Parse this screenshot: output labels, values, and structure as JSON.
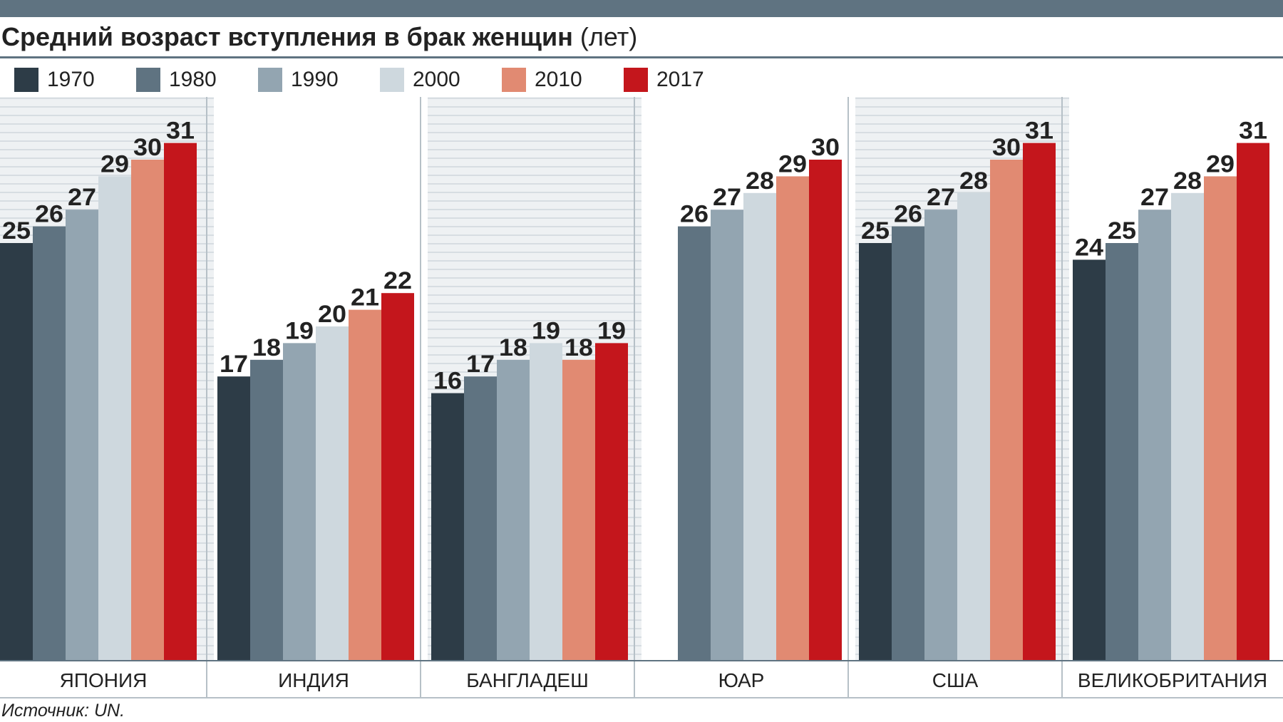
{
  "title": "Средний возраст вступления в брак женщин",
  "title_unit": "(лет)",
  "source": "Источник: UN.",
  "colors": {
    "topbar": "#5f7381",
    "stripe_panel_bg": "#eef1f3",
    "stripe_line": "#c9d1d7",
    "divider": "#b6c0c7",
    "label": "#222222"
  },
  "legend": [
    {
      "label": "1970",
      "color": "#2d3c47"
    },
    {
      "label": "1980",
      "color": "#5f7381"
    },
    {
      "label": "1990",
      "color": "#93a5b1"
    },
    {
      "label": "2000",
      "color": "#ced8de"
    },
    {
      "label": "2010",
      "color": "#e18a72"
    },
    {
      "label": "2017",
      "color": "#c4161c"
    }
  ],
  "chart_data": {
    "type": "bar",
    "ylim": [
      0,
      33
    ],
    "grid": "horizontal stripes",
    "categories": [
      "ЯПОНИЯ",
      "ИНДИЯ",
      "БАНГЛАДЕШ",
      "ЮАР",
      "США",
      "ВЕЛИКОБРИТАНИЯ"
    ],
    "series": [
      {
        "name": "1970",
        "color": "#2d3c47",
        "values": [
          25,
          17,
          16,
          null,
          25,
          24
        ]
      },
      {
        "name": "1980",
        "color": "#5f7381",
        "values": [
          26,
          18,
          17,
          26,
          26,
          25
        ]
      },
      {
        "name": "1990",
        "color": "#93a5b1",
        "values": [
          27,
          19,
          18,
          27,
          27,
          27
        ]
      },
      {
        "name": "2000",
        "color": "#ced8de",
        "values": [
          29,
          20,
          19,
          28,
          28,
          28
        ]
      },
      {
        "name": "2010",
        "color": "#e18a72",
        "values": [
          30,
          21,
          18,
          29,
          30,
          29
        ]
      },
      {
        "name": "2017",
        "color": "#c4161c",
        "values": [
          31,
          22,
          19,
          30,
          31,
          31
        ]
      }
    ]
  }
}
